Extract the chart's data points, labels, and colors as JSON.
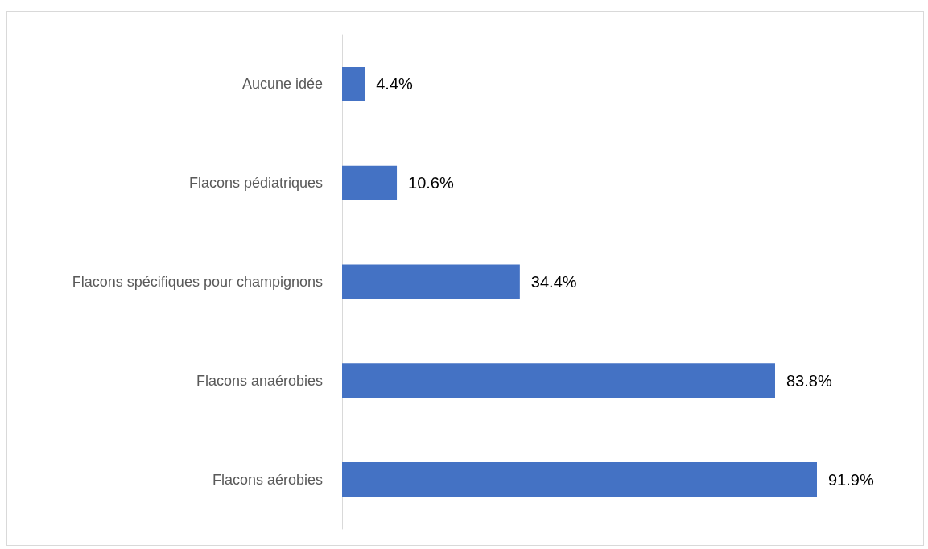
{
  "chart_data": {
    "type": "bar",
    "orientation": "horizontal",
    "categories": [
      "Aucune idée",
      "Flacons pédiatriques",
      "Flacons spécifiques pour champignons",
      "Flacons anaérobies",
      "Flacons aérobies"
    ],
    "values": [
      4.4,
      10.6,
      34.4,
      83.8,
      91.9
    ],
    "value_labels": [
      "4.4%",
      "10.6%",
      "34.4%",
      "83.8%",
      "91.9%"
    ],
    "color": "#4472c4"
  }
}
